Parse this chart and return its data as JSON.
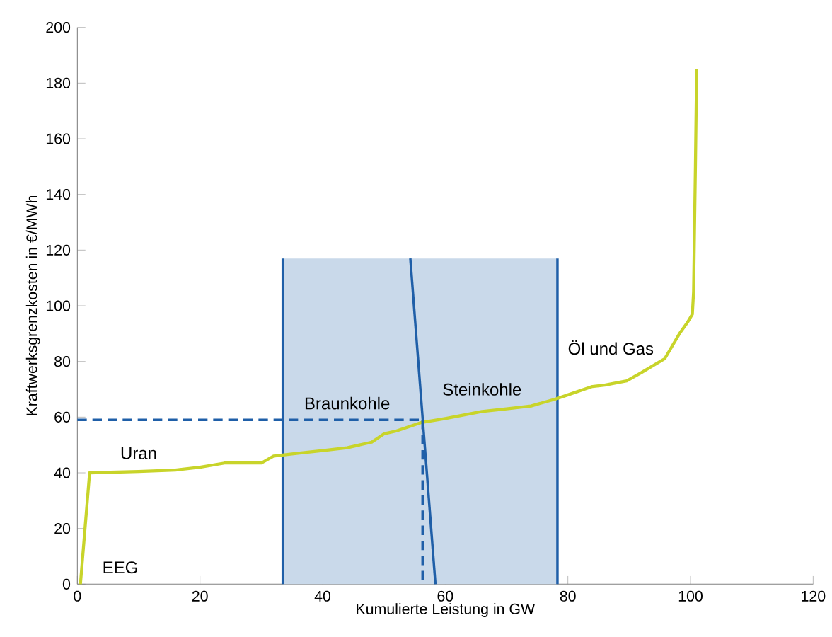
{
  "chart_data": {
    "type": "line",
    "xlabel": "Kumulierte Leistung in GW",
    "ylabel": "Kraftwerksgrenzkosten in €/MWh",
    "xlim": [
      0,
      120
    ],
    "ylim": [
      0,
      200
    ],
    "xticks": [
      0,
      20,
      40,
      60,
      80,
      100,
      120
    ],
    "yticks": [
      0,
      20,
      40,
      60,
      80,
      100,
      120,
      140,
      160,
      180,
      200
    ],
    "series": [
      {
        "type": "area",
        "color": "#c9d9ea",
        "x": [
          33.5,
          78.3
        ],
        "values": [
          117,
          117
        ]
      },
      {
        "color": "#1f5fa8",
        "x": [
          33.5,
          33.5
        ],
        "values": [
          0,
          117
        ]
      },
      {
        "color": "#1f5fa8",
        "x": [
          78.3,
          78.3
        ],
        "values": [
          0,
          117
        ]
      },
      {
        "color": "#c8d42a",
        "x": [
          0.5,
          2,
          10,
          16,
          20,
          24,
          30,
          32,
          36,
          40,
          44,
          48,
          50,
          52,
          56,
          60,
          66,
          70,
          74,
          78,
          80,
          84,
          86,
          89.6,
          92,
          95.8,
          98.2,
          99.5,
          100.3,
          100.5,
          100.8,
          101
        ],
        "values": [
          0,
          40,
          40.5,
          41,
          42,
          43.5,
          43.5,
          46,
          47,
          48,
          49,
          51,
          54,
          55,
          58,
          59.5,
          62,
          63,
          64,
          66.5,
          68,
          71,
          71.5,
          73,
          76,
          81,
          90,
          94,
          97,
          105,
          150,
          185
        ]
      },
      {
        "color": "#1f5fa8",
        "x": [
          54.3,
          58.4
        ],
        "values": [
          117,
          0
        ]
      },
      {
        "color": "#1f5fa8",
        "line_style": "dashed",
        "x": [
          0,
          56.3
        ],
        "values": [
          59,
          59
        ]
      },
      {
        "color": "#1f5fa8",
        "line_style": "dashed",
        "x": [
          56.3,
          56.3
        ],
        "values": [
          59,
          0
        ]
      }
    ],
    "annotations": [
      "EEG",
      "Uran",
      "Braunkohle",
      "Steinkohle",
      "Öl und Gas"
    ]
  }
}
